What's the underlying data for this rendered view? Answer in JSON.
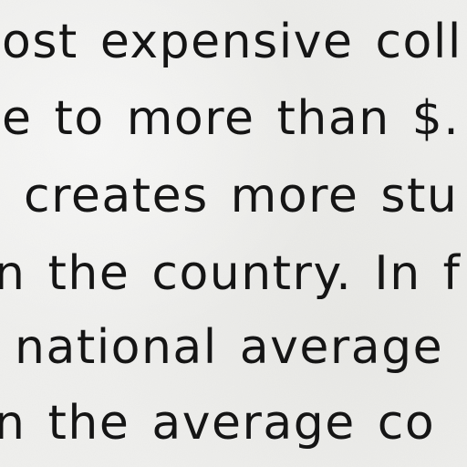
{
  "document": {
    "lines": [
      "ost expensive coll",
      "e to more than $.",
      "creates more stu",
      "n the country.  In f",
      "national average",
      "n the average co"
    ]
  }
}
